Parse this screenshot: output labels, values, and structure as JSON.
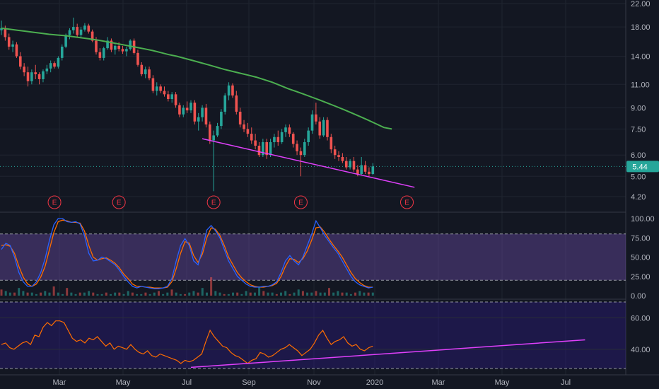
{
  "chart_data": [
    {
      "type": "candlestick",
      "title": "",
      "y_scale": "log",
      "y_ticks": [
        "22.00",
        "18.00",
        "14.00",
        "11.00",
        "9.00",
        "7.50",
        "6.00",
        "5.00",
        "4.20"
      ],
      "x_ticks": [
        "Mar",
        "May",
        "Jul",
        "Sep",
        "Nov",
        "2020",
        "Mar",
        "May",
        "Jul"
      ],
      "last_price": "5.44",
      "colors": {
        "up": "#26a69a",
        "down": "#ef5350",
        "ma": "#4caf50",
        "trendline": "#e040fb",
        "event": "#f23645"
      },
      "candles": [
        {
          "o": 17.5,
          "h": 19.0,
          "l": 16.8,
          "c": 17.8
        },
        {
          "o": 17.8,
          "h": 18.2,
          "l": 16.0,
          "c": 16.5
        },
        {
          "o": 16.5,
          "h": 17.0,
          "l": 14.8,
          "c": 15.2
        },
        {
          "o": 15.2,
          "h": 16.0,
          "l": 14.5,
          "c": 15.5
        },
        {
          "o": 15.5,
          "h": 15.8,
          "l": 13.8,
          "c": 14.0
        },
        {
          "o": 14.0,
          "h": 14.5,
          "l": 12.5,
          "c": 12.8
        },
        {
          "o": 12.8,
          "h": 13.2,
          "l": 11.8,
          "c": 12.2
        },
        {
          "o": 12.2,
          "h": 12.8,
          "l": 10.8,
          "c": 11.3
        },
        {
          "o": 11.3,
          "h": 12.5,
          "l": 11.0,
          "c": 12.2
        },
        {
          "o": 12.2,
          "h": 13.0,
          "l": 11.5,
          "c": 12.0
        },
        {
          "o": 12.0,
          "h": 12.2,
          "l": 11.0,
          "c": 11.5
        },
        {
          "o": 11.5,
          "h": 12.5,
          "l": 11.2,
          "c": 12.3
        },
        {
          "o": 12.3,
          "h": 13.0,
          "l": 12.0,
          "c": 12.6
        },
        {
          "o": 12.6,
          "h": 13.5,
          "l": 12.2,
          "c": 13.2
        },
        {
          "o": 13.2,
          "h": 13.4,
          "l": 12.6,
          "c": 12.8
        },
        {
          "o": 12.8,
          "h": 14.0,
          "l": 12.6,
          "c": 13.8
        },
        {
          "o": 13.8,
          "h": 15.5,
          "l": 13.5,
          "c": 15.2
        },
        {
          "o": 15.2,
          "h": 17.0,
          "l": 15.0,
          "c": 16.8
        },
        {
          "o": 16.8,
          "h": 17.8,
          "l": 16.2,
          "c": 17.5
        },
        {
          "o": 17.5,
          "h": 19.5,
          "l": 17.0,
          "c": 18.0
        },
        {
          "o": 18.0,
          "h": 18.5,
          "l": 16.5,
          "c": 16.8
        },
        {
          "o": 16.8,
          "h": 18.0,
          "l": 16.5,
          "c": 17.6
        },
        {
          "o": 17.6,
          "h": 18.6,
          "l": 17.3,
          "c": 18.2
        },
        {
          "o": 18.2,
          "h": 18.5,
          "l": 17.0,
          "c": 17.3
        },
        {
          "o": 17.3,
          "h": 17.6,
          "l": 15.8,
          "c": 16.0
        },
        {
          "o": 16.0,
          "h": 16.5,
          "l": 14.2,
          "c": 14.5
        },
        {
          "o": 14.5,
          "h": 15.0,
          "l": 13.5,
          "c": 13.8
        },
        {
          "o": 13.8,
          "h": 15.2,
          "l": 13.5,
          "c": 15.0
        },
        {
          "o": 15.0,
          "h": 16.5,
          "l": 14.8,
          "c": 16.0
        },
        {
          "o": 16.0,
          "h": 16.3,
          "l": 14.5,
          "c": 14.8
        },
        {
          "o": 14.8,
          "h": 15.5,
          "l": 14.2,
          "c": 15.3
        },
        {
          "o": 15.3,
          "h": 15.8,
          "l": 14.6,
          "c": 14.9
        },
        {
          "o": 14.9,
          "h": 15.3,
          "l": 14.3,
          "c": 14.6
        },
        {
          "o": 14.6,
          "h": 15.2,
          "l": 14.0,
          "c": 14.9
        },
        {
          "o": 14.9,
          "h": 16.2,
          "l": 14.7,
          "c": 16.0
        },
        {
          "o": 16.0,
          "h": 16.3,
          "l": 14.2,
          "c": 14.4
        },
        {
          "o": 14.4,
          "h": 14.8,
          "l": 12.8,
          "c": 13.0
        },
        {
          "o": 13.0,
          "h": 13.3,
          "l": 11.8,
          "c": 12.0
        },
        {
          "o": 12.0,
          "h": 12.8,
          "l": 11.6,
          "c": 12.5
        },
        {
          "o": 12.5,
          "h": 12.8,
          "l": 11.4,
          "c": 11.6
        },
        {
          "o": 11.6,
          "h": 11.9,
          "l": 10.2,
          "c": 10.4
        },
        {
          "o": 10.4,
          "h": 11.2,
          "l": 10.0,
          "c": 10.8
        },
        {
          "o": 10.8,
          "h": 11.0,
          "l": 10.2,
          "c": 10.4
        },
        {
          "o": 10.4,
          "h": 10.8,
          "l": 9.9,
          "c": 10.1
        },
        {
          "o": 10.1,
          "h": 10.4,
          "l": 9.5,
          "c": 9.7
        },
        {
          "o": 9.7,
          "h": 10.3,
          "l": 9.4,
          "c": 10.1
        },
        {
          "o": 10.1,
          "h": 10.3,
          "l": 9.0,
          "c": 9.2
        },
        {
          "o": 9.2,
          "h": 9.4,
          "l": 8.3,
          "c": 8.5
        },
        {
          "o": 8.5,
          "h": 9.2,
          "l": 8.3,
          "c": 9.0
        },
        {
          "o": 9.0,
          "h": 9.5,
          "l": 8.6,
          "c": 8.8
        },
        {
          "o": 8.8,
          "h": 9.6,
          "l": 8.6,
          "c": 9.4
        },
        {
          "o": 9.4,
          "h": 9.6,
          "l": 7.8,
          "c": 8.0
        },
        {
          "o": 8.0,
          "h": 8.6,
          "l": 7.4,
          "c": 8.3
        },
        {
          "o": 8.3,
          "h": 9.2,
          "l": 8.0,
          "c": 9.0
        },
        {
          "o": 9.0,
          "h": 9.3,
          "l": 7.6,
          "c": 7.8
        },
        {
          "o": 7.8,
          "h": 8.0,
          "l": 6.6,
          "c": 6.8
        },
        {
          "o": 6.8,
          "h": 7.4,
          "l": 4.4,
          "c": 7.1
        },
        {
          "o": 7.1,
          "h": 7.9,
          "l": 7.0,
          "c": 7.7
        },
        {
          "o": 7.7,
          "h": 8.9,
          "l": 7.5,
          "c": 8.7
        },
        {
          "o": 8.7,
          "h": 10.2,
          "l": 8.5,
          "c": 10.0
        },
        {
          "o": 10.0,
          "h": 11.2,
          "l": 9.6,
          "c": 10.9
        },
        {
          "o": 10.9,
          "h": 11.1,
          "l": 9.8,
          "c": 10.0
        },
        {
          "o": 10.0,
          "h": 10.4,
          "l": 8.5,
          "c": 8.7
        },
        {
          "o": 8.7,
          "h": 9.0,
          "l": 7.6,
          "c": 7.8
        },
        {
          "o": 7.8,
          "h": 8.1,
          "l": 7.3,
          "c": 7.5
        },
        {
          "o": 7.5,
          "h": 7.9,
          "l": 7.0,
          "c": 7.2
        },
        {
          "o": 7.2,
          "h": 7.6,
          "l": 6.6,
          "c": 6.8
        },
        {
          "o": 6.8,
          "h": 7.2,
          "l": 6.3,
          "c": 6.5
        },
        {
          "o": 6.5,
          "h": 6.7,
          "l": 5.9,
          "c": 6.0
        },
        {
          "o": 6.0,
          "h": 6.9,
          "l": 5.9,
          "c": 6.7
        },
        {
          "o": 6.7,
          "h": 6.9,
          "l": 5.8,
          "c": 6.0
        },
        {
          "o": 6.0,
          "h": 6.9,
          "l": 5.9,
          "c": 6.7
        },
        {
          "o": 6.7,
          "h": 7.2,
          "l": 6.4,
          "c": 7.0
        },
        {
          "o": 7.0,
          "h": 7.4,
          "l": 6.5,
          "c": 6.7
        },
        {
          "o": 6.7,
          "h": 7.5,
          "l": 6.6,
          "c": 7.3
        },
        {
          "o": 7.3,
          "h": 7.8,
          "l": 7.0,
          "c": 7.6
        },
        {
          "o": 7.6,
          "h": 7.8,
          "l": 7.0,
          "c": 7.2
        },
        {
          "o": 7.2,
          "h": 7.3,
          "l": 6.4,
          "c": 6.6
        },
        {
          "o": 6.6,
          "h": 6.8,
          "l": 6.0,
          "c": 6.2
        },
        {
          "o": 6.2,
          "h": 6.4,
          "l": 5.0,
          "c": 6.0
        },
        {
          "o": 6.0,
          "h": 6.9,
          "l": 5.9,
          "c": 6.7
        },
        {
          "o": 6.7,
          "h": 7.6,
          "l": 6.5,
          "c": 7.4
        },
        {
          "o": 7.4,
          "h": 8.8,
          "l": 7.2,
          "c": 8.5
        },
        {
          "o": 8.5,
          "h": 9.4,
          "l": 7.8,
          "c": 8.0
        },
        {
          "o": 8.0,
          "h": 8.3,
          "l": 6.9,
          "c": 7.1
        },
        {
          "o": 7.1,
          "h": 8.3,
          "l": 7.0,
          "c": 8.1
        },
        {
          "o": 8.1,
          "h": 8.3,
          "l": 6.8,
          "c": 7.0
        },
        {
          "o": 7.0,
          "h": 7.2,
          "l": 6.1,
          "c": 6.3
        },
        {
          "o": 6.3,
          "h": 6.5,
          "l": 5.8,
          "c": 6.0
        },
        {
          "o": 6.0,
          "h": 6.2,
          "l": 5.7,
          "c": 5.9
        },
        {
          "o": 5.9,
          "h": 6.1,
          "l": 5.6,
          "c": 5.7
        },
        {
          "o": 5.7,
          "h": 5.9,
          "l": 5.3,
          "c": 5.4
        },
        {
          "o": 5.4,
          "h": 5.8,
          "l": 5.3,
          "c": 5.7
        },
        {
          "o": 5.7,
          "h": 5.9,
          "l": 5.2,
          "c": 5.3
        },
        {
          "o": 5.3,
          "h": 5.5,
          "l": 5.0,
          "c": 5.1
        },
        {
          "o": 5.1,
          "h": 5.9,
          "l": 5.05,
          "c": 5.5
        },
        {
          "o": 5.5,
          "h": 5.7,
          "l": 5.1,
          "c": 5.2
        },
        {
          "o": 5.2,
          "h": 5.4,
          "l": 5.0,
          "c": 5.1
        },
        {
          "o": 5.1,
          "h": 5.6,
          "l": 5.05,
          "c": 5.44
        }
      ],
      "ma": [
        17.8,
        17.65,
        17.5,
        17.35,
        17.2,
        17.05,
        16.9,
        16.8,
        16.7,
        16.55,
        16.4,
        16.25,
        16.1,
        15.9,
        15.7,
        15.5,
        15.3,
        15.1,
        14.9,
        14.7,
        14.45,
        14.2,
        14.0,
        13.75,
        13.5,
        13.25,
        13.0,
        12.75,
        12.5,
        12.3,
        12.1,
        11.9,
        11.7,
        11.45,
        11.2,
        10.9,
        10.6,
        10.35,
        10.1,
        9.85,
        9.6,
        9.35,
        9.1,
        8.85,
        8.6,
        8.35,
        8.1,
        7.85,
        7.6,
        7.5
      ],
      "ma_start_index": 0,
      "ma_end_index": 103,
      "earnings_markers": [
        "E",
        "E",
        "E",
        "E",
        "E"
      ],
      "earnings_index": [
        14,
        31,
        56,
        79,
        107
      ],
      "trendline": {
        "from": {
          "i": 53,
          "y": 6.9
        },
        "to": {
          "i": 109,
          "y": 4.55
        }
      }
    },
    {
      "type": "line",
      "subtype": "stochastic",
      "y_ticks": [
        "100.00",
        "75.00",
        "50.00",
        "25.00",
        "0.00"
      ],
      "ylim": [
        0,
        100
      ],
      "band": [
        20,
        80
      ],
      "colors": {
        "k": "#2962ff",
        "d": "#ff6d00",
        "band": "#7e57c2"
      },
      "series": [
        {
          "values": [
            60,
            68,
            65,
            50,
            30,
            18,
            12,
            12,
            18,
            30,
            48,
            72,
            92,
            100,
            100,
            96,
            95,
            96,
            93,
            78,
            55,
            45,
            46,
            50,
            48,
            44,
            40,
            33,
            25,
            18,
            12,
            10,
            12,
            11,
            10,
            9,
            9,
            10,
            12,
            22,
            45,
            65,
            74,
            65,
            45,
            40,
            60,
            85,
            91,
            84,
            75,
            60,
            45,
            35,
            25,
            20,
            15,
            12,
            11,
            11,
            12,
            12,
            14,
            18,
            30,
            45,
            52,
            45,
            40,
            50,
            65,
            80,
            97,
            88,
            78,
            70,
            62,
            55,
            45,
            35,
            25,
            18,
            14,
            12,
            10,
            11
          ]
        },
        {
          "values": [
            65,
            66,
            64,
            55,
            38,
            24,
            15,
            12,
            15,
            24,
            38,
            60,
            82,
            96,
            98,
            97,
            95,
            95,
            94,
            84,
            65,
            50,
            46,
            48,
            49,
            46,
            42,
            36,
            28,
            22,
            15,
            12,
            12,
            11,
            11,
            10,
            10,
            10,
            11,
            18,
            35,
            55,
            70,
            68,
            52,
            43,
            54,
            75,
            88,
            86,
            78,
            65,
            50,
            40,
            30,
            23,
            18,
            14,
            12,
            11,
            11,
            12,
            13,
            16,
            25,
            38,
            48,
            47,
            43,
            48,
            58,
            72,
            88,
            89,
            82,
            73,
            65,
            58,
            50,
            40,
            30,
            22,
            17,
            13,
            11,
            11
          ]
        }
      ]
    },
    {
      "type": "bar",
      "subtype": "volume",
      "values": [
        4,
        3,
        2,
        2,
        5,
        3,
        2,
        2,
        1,
        2,
        3,
        2,
        6,
        2,
        1,
        5,
        2,
        1,
        2,
        2,
        3,
        2,
        1,
        1,
        2,
        1,
        2,
        2,
        1,
        3,
        2,
        1,
        1,
        2,
        1,
        2,
        3,
        1,
        2,
        4,
        2,
        1,
        1,
        2,
        3,
        2,
        5,
        2,
        12,
        3,
        2,
        1,
        1,
        2,
        2,
        1,
        3,
        2,
        2,
        6,
        3,
        2,
        2,
        1,
        2,
        3,
        1,
        2,
        4,
        3,
        2,
        2,
        3,
        2,
        2,
        5,
        2,
        3,
        2,
        2,
        1,
        2,
        3,
        2,
        2,
        2
      ]
    },
    {
      "type": "line",
      "subtype": "oscillator",
      "y_ticks": [
        "60.00",
        "40.00"
      ],
      "ylim": [
        26,
        70
      ],
      "colors": {
        "line": "#ff6d00",
        "trendline": "#e040fb",
        "band": "#311b92"
      },
      "values": [
        43,
        44,
        41,
        40,
        42,
        44,
        45,
        43,
        49,
        48,
        54,
        57,
        55,
        58,
        58,
        57,
        52,
        47,
        45,
        46,
        44,
        47,
        46,
        48,
        45,
        42,
        44,
        40,
        42,
        41,
        40,
        43,
        40,
        38,
        37,
        39,
        36,
        35,
        37,
        36,
        35,
        34,
        33,
        31,
        33,
        32,
        33,
        35,
        37,
        45,
        52,
        48,
        45,
        42,
        41,
        38,
        36,
        35,
        33,
        31,
        33,
        34,
        38,
        37,
        35,
        36,
        38,
        40,
        41,
        43,
        41,
        39,
        36,
        38,
        40,
        44,
        49,
        52,
        47,
        43,
        45,
        46,
        48,
        44,
        42,
        43,
        40,
        39,
        41,
        42
      ],
      "trendline": {
        "from": {
          "i": 50,
          "y": 28.5
        },
        "to": {
          "i": 154,
          "y": 46
        }
      }
    }
  ]
}
